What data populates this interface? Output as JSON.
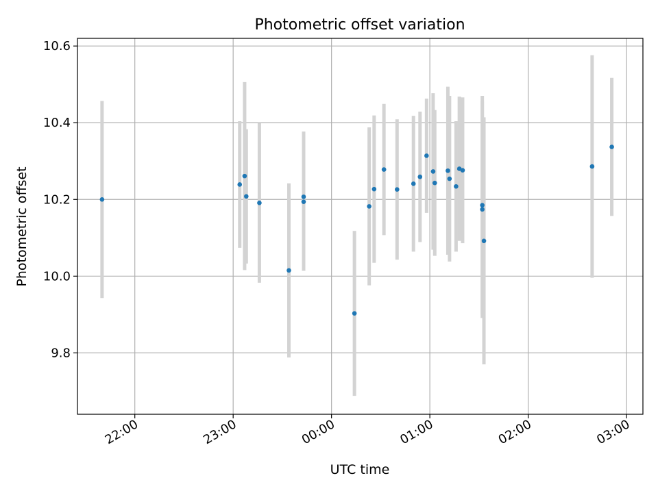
{
  "chart_data": {
    "type": "scatter",
    "title": "Photometric offset variation",
    "xlabel": "UTC time",
    "ylabel": "Photometric offset",
    "x_unit": "UTC time (HH:MM)",
    "xlim": [
      "21:25",
      "03:10"
    ],
    "ylim": [
      9.64,
      10.62
    ],
    "x_ticks": [
      "22:00",
      "23:00",
      "00:00",
      "01:00",
      "02:00",
      "03:00"
    ],
    "y_ticks": [
      "9.8",
      "10.0",
      "10.2",
      "10.4",
      "10.6"
    ],
    "grid": true,
    "legend": "none",
    "colors": {
      "points": "#1f77b4",
      "errorbars": "#d3d3d3",
      "grid": "#b0b0b0"
    },
    "points": [
      {
        "x": "21:40",
        "y": 10.2,
        "yerr": 0.257
      },
      {
        "x": "23:04",
        "y": 10.239,
        "yerr": 0.165
      },
      {
        "x": "23:07",
        "y": 10.261,
        "yerr": 0.245
      },
      {
        "x": "23:08",
        "y": 10.208,
        "yerr": 0.175
      },
      {
        "x": "23:16",
        "y": 10.191,
        "yerr": 0.208
      },
      {
        "x": "23:34",
        "y": 10.015,
        "yerr": 0.227
      },
      {
        "x": "23:43",
        "y": 10.207,
        "yerr": 0.17
      },
      {
        "x": "23:43",
        "y": 10.194,
        "yerr": 0.18
      },
      {
        "x": "00:14",
        "y": 9.903,
        "yerr": 0.215
      },
      {
        "x": "00:23",
        "y": 10.182,
        "yerr": 0.206
      },
      {
        "x": "00:26",
        "y": 10.227,
        "yerr": 0.192
      },
      {
        "x": "00:32",
        "y": 10.278,
        "yerr": 0.171
      },
      {
        "x": "00:40",
        "y": 10.226,
        "yerr": 0.183
      },
      {
        "x": "00:50",
        "y": 10.241,
        "yerr": 0.177
      },
      {
        "x": "00:54",
        "y": 10.259,
        "yerr": 0.17
      },
      {
        "x": "00:58",
        "y": 10.314,
        "yerr": 0.149
      },
      {
        "x": "01:02",
        "y": 10.273,
        "yerr": 0.204
      },
      {
        "x": "01:03",
        "y": 10.243,
        "yerr": 0.19
      },
      {
        "x": "01:11",
        "y": 10.275,
        "yerr": 0.219
      },
      {
        "x": "01:12",
        "y": 10.254,
        "yerr": 0.216
      },
      {
        "x": "01:16",
        "y": 10.234,
        "yerr": 0.17
      },
      {
        "x": "01:18",
        "y": 10.28,
        "yerr": 0.188
      },
      {
        "x": "01:20",
        "y": 10.276,
        "yerr": 0.19
      },
      {
        "x": "01:32",
        "y": 10.185,
        "yerr": 0.285
      },
      {
        "x": "01:32",
        "y": 10.174,
        "yerr": 0.283
      },
      {
        "x": "01:33",
        "y": 10.092,
        "yerr": 0.322
      },
      {
        "x": "02:39",
        "y": 10.286,
        "yerr": 0.29
      },
      {
        "x": "02:51",
        "y": 10.337,
        "yerr": 0.18
      }
    ]
  }
}
